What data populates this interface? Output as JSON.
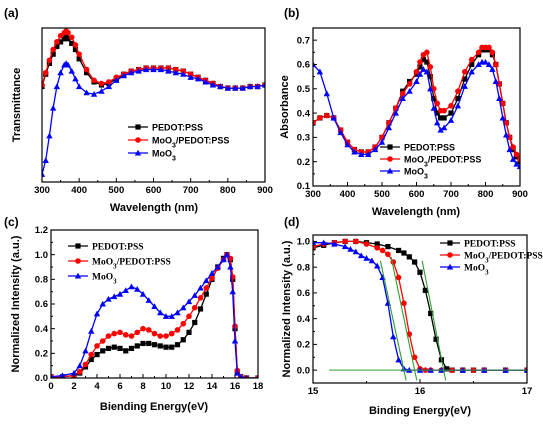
{
  "chart_data": [
    {
      "id": "a",
      "panel_label": "(a)",
      "type": "line",
      "xlabel": "Wavelength (nm)",
      "ylabel": "Transmittance",
      "xlim": [
        300,
        900
      ],
      "ylim": [
        0,
        1
      ],
      "y_ticks_hidden": true,
      "x_ticks": [
        300,
        400,
        500,
        600,
        700,
        800,
        900
      ],
      "x_tick_labels": [
        "300",
        "400",
        "500",
        "600",
        "700",
        "800",
        "900"
      ],
      "legend_position": "lower-right",
      "series": [
        {
          "name": "PEDOT:PSS",
          "color": "#000000",
          "marker": "square",
          "x": [
            300,
            310,
            320,
            330,
            340,
            350,
            360,
            365,
            370,
            380,
            390,
            400,
            420,
            440,
            460,
            480,
            500,
            520,
            540,
            560,
            580,
            600,
            620,
            640,
            660,
            680,
            700,
            720,
            740,
            760,
            780,
            800,
            820,
            840,
            860,
            880,
            900
          ],
          "y": [
            0.62,
            0.7,
            0.77,
            0.83,
            0.88,
            0.91,
            0.93,
            0.94,
            0.93,
            0.9,
            0.86,
            0.8,
            0.71,
            0.65,
            0.63,
            0.64,
            0.67,
            0.7,
            0.72,
            0.73,
            0.74,
            0.74,
            0.74,
            0.74,
            0.73,
            0.72,
            0.7,
            0.68,
            0.66,
            0.64,
            0.62,
            0.61,
            0.61,
            0.61,
            0.62,
            0.62,
            0.63
          ]
        },
        {
          "name": "MoO3/PEDOT:PSS",
          "color": "#ff0000",
          "marker": "circle",
          "x": [
            300,
            310,
            320,
            330,
            340,
            350,
            360,
            365,
            370,
            380,
            390,
            400,
            420,
            440,
            460,
            480,
            500,
            520,
            540,
            560,
            580,
            600,
            620,
            640,
            660,
            680,
            700,
            720,
            740,
            760,
            780,
            800,
            820,
            840,
            860,
            880,
            900
          ],
          "y": [
            0.63,
            0.71,
            0.79,
            0.86,
            0.91,
            0.95,
            0.97,
            0.98,
            0.97,
            0.94,
            0.89,
            0.83,
            0.73,
            0.66,
            0.64,
            0.65,
            0.68,
            0.7,
            0.72,
            0.73,
            0.74,
            0.74,
            0.74,
            0.74,
            0.73,
            0.72,
            0.7,
            0.68,
            0.66,
            0.64,
            0.62,
            0.61,
            0.61,
            0.61,
            0.62,
            0.62,
            0.63
          ]
        },
        {
          "name": "MoO3",
          "color": "#0000ff",
          "marker": "triangle",
          "x": [
            300,
            310,
            320,
            330,
            340,
            350,
            360,
            365,
            370,
            380,
            390,
            400,
            420,
            440,
            460,
            480,
            500,
            520,
            540,
            560,
            580,
            600,
            620,
            640,
            660,
            680,
            700,
            720,
            740,
            760,
            780,
            800,
            820,
            840,
            860,
            880,
            900
          ],
          "y": [
            0.05,
            0.14,
            0.3,
            0.48,
            0.62,
            0.71,
            0.76,
            0.77,
            0.76,
            0.72,
            0.67,
            0.62,
            0.58,
            0.57,
            0.59,
            0.62,
            0.66,
            0.69,
            0.71,
            0.72,
            0.73,
            0.73,
            0.73,
            0.72,
            0.71,
            0.7,
            0.68,
            0.67,
            0.65,
            0.63,
            0.62,
            0.61,
            0.61,
            0.61,
            0.62,
            0.62,
            0.63
          ]
        }
      ]
    },
    {
      "id": "b",
      "panel_label": "(b)",
      "type": "line",
      "xlabel": "Wavelength (nm)",
      "ylabel": "Absorbance",
      "xlim": [
        300,
        900
      ],
      "ylim": [
        0.1,
        0.75
      ],
      "x_ticks": [
        300,
        400,
        500,
        600,
        700,
        800,
        900
      ],
      "x_tick_labels": [
        "300",
        "400",
        "500",
        "600",
        "700",
        "800",
        "900"
      ],
      "y_ticks": [
        0.1,
        0.2,
        0.3,
        0.4,
        0.5,
        0.6,
        0.7
      ],
      "y_tick_labels": [
        "0.1",
        "0.2",
        "0.3",
        "0.4",
        "0.5",
        "0.6",
        "0.7"
      ],
      "legend_position": "lower-right",
      "series": [
        {
          "name": "PEDOT:PSS",
          "color": "#000000",
          "marker": "square",
          "x": [
            300,
            320,
            340,
            360,
            380,
            400,
            420,
            440,
            460,
            480,
            500,
            520,
            540,
            560,
            580,
            600,
            610,
            620,
            630,
            640,
            650,
            660,
            670,
            680,
            700,
            720,
            740,
            760,
            780,
            790,
            800,
            810,
            820,
            830,
            840,
            850,
            860,
            870,
            880,
            890,
            900
          ],
          "y": [
            0.36,
            0.38,
            0.39,
            0.38,
            0.33,
            0.28,
            0.25,
            0.24,
            0.24,
            0.26,
            0.3,
            0.36,
            0.42,
            0.49,
            0.53,
            0.56,
            0.59,
            0.62,
            0.61,
            0.55,
            0.46,
            0.4,
            0.38,
            0.38,
            0.4,
            0.46,
            0.54,
            0.6,
            0.64,
            0.66,
            0.66,
            0.66,
            0.64,
            0.6,
            0.52,
            0.44,
            0.36,
            0.3,
            0.25,
            0.22,
            0.2
          ]
        },
        {
          "name": "MoO3/PEDOT:PSS",
          "color": "#ff0000",
          "marker": "circle",
          "x": [
            300,
            320,
            340,
            360,
            380,
            400,
            420,
            440,
            460,
            480,
            500,
            520,
            540,
            560,
            580,
            600,
            610,
            620,
            630,
            640,
            650,
            660,
            670,
            680,
            700,
            720,
            740,
            760,
            780,
            790,
            800,
            810,
            820,
            830,
            840,
            850,
            860,
            870,
            880,
            890,
            900
          ],
          "y": [
            0.36,
            0.38,
            0.39,
            0.38,
            0.33,
            0.28,
            0.25,
            0.24,
            0.24,
            0.26,
            0.3,
            0.36,
            0.42,
            0.48,
            0.52,
            0.57,
            0.61,
            0.64,
            0.65,
            0.59,
            0.5,
            0.44,
            0.41,
            0.41,
            0.43,
            0.49,
            0.57,
            0.62,
            0.65,
            0.67,
            0.67,
            0.67,
            0.65,
            0.6,
            0.52,
            0.44,
            0.36,
            0.3,
            0.26,
            0.23,
            0.21
          ]
        },
        {
          "name": "MoO3",
          "color": "#0000ff",
          "marker": "triangle",
          "x": [
            300,
            320,
            340,
            360,
            380,
            400,
            420,
            440,
            460,
            480,
            500,
            520,
            540,
            560,
            580,
            600,
            610,
            620,
            630,
            640,
            650,
            660,
            670,
            680,
            700,
            720,
            740,
            760,
            780,
            790,
            800,
            810,
            820,
            830,
            840,
            850,
            860,
            870,
            880,
            890,
            900
          ],
          "y": [
            0.6,
            0.57,
            0.48,
            0.38,
            0.32,
            0.27,
            0.24,
            0.23,
            0.23,
            0.25,
            0.28,
            0.34,
            0.4,
            0.46,
            0.49,
            0.53,
            0.56,
            0.58,
            0.57,
            0.5,
            0.42,
            0.36,
            0.33,
            0.34,
            0.37,
            0.43,
            0.51,
            0.57,
            0.6,
            0.61,
            0.61,
            0.6,
            0.58,
            0.53,
            0.46,
            0.38,
            0.31,
            0.25,
            0.21,
            0.19,
            0.18
          ]
        }
      ]
    },
    {
      "id": "c",
      "panel_label": "(c)",
      "type": "line",
      "xlabel": "Biending Energy(eV)",
      "ylabel": "Normalized Intensity (a.u.)",
      "xlim": [
        0,
        18
      ],
      "ylim": [
        0,
        1.2
      ],
      "x_ticks": [
        0,
        2,
        4,
        6,
        8,
        10,
        12,
        14,
        16,
        18
      ],
      "x_tick_labels": [
        "0",
        "2",
        "4",
        "6",
        "8",
        "10",
        "12",
        "14",
        "16",
        "18"
      ],
      "y_ticks": [
        0,
        0.2,
        0.4,
        0.6,
        0.8,
        1.0,
        1.2
      ],
      "y_tick_labels": [
        "0.0",
        "0.2",
        "0.4",
        "0.6",
        "0.8",
        "1.0",
        "1.2"
      ],
      "legend_position": "top-left",
      "series": [
        {
          "name": "PEDOT:PSS",
          "color": "#000000",
          "marker": "square",
          "x": [
            0,
            1,
            2,
            2.5,
            3,
            3.5,
            4,
            4.5,
            5,
            5.5,
            6,
            6.5,
            7,
            7.5,
            8,
            8.5,
            9,
            9.5,
            10,
            10.5,
            11,
            11.5,
            12,
            12.5,
            13,
            13.5,
            14,
            14.5,
            15,
            15.3,
            15.6,
            15.8,
            16,
            16.2,
            16.5,
            17,
            18
          ],
          "y": [
            0.01,
            0.01,
            0.02,
            0.04,
            0.09,
            0.15,
            0.19,
            0.22,
            0.24,
            0.25,
            0.24,
            0.22,
            0.24,
            0.26,
            0.28,
            0.28,
            0.27,
            0.26,
            0.25,
            0.25,
            0.27,
            0.31,
            0.37,
            0.45,
            0.56,
            0.68,
            0.8,
            0.9,
            0.97,
            1.0,
            0.96,
            0.8,
            0.4,
            0.05,
            0.01,
            0.0,
            0.0
          ]
        },
        {
          "name": "MoO3/PEDOT:PSS",
          "color": "#ff0000",
          "marker": "circle",
          "x": [
            0,
            1,
            2,
            2.5,
            3,
            3.5,
            4,
            4.5,
            5,
            5.5,
            6,
            6.5,
            7,
            7.5,
            8,
            8.5,
            9,
            9.5,
            10,
            10.5,
            11,
            11.5,
            12,
            12.5,
            13,
            13.5,
            14,
            14.5,
            15,
            15.3,
            15.6,
            15.8,
            16,
            16.2,
            16.5,
            17,
            18
          ],
          "y": [
            0.01,
            0.01,
            0.02,
            0.05,
            0.11,
            0.19,
            0.26,
            0.3,
            0.34,
            0.36,
            0.37,
            0.35,
            0.34,
            0.37,
            0.4,
            0.39,
            0.36,
            0.34,
            0.34,
            0.36,
            0.39,
            0.44,
            0.5,
            0.57,
            0.65,
            0.73,
            0.81,
            0.89,
            0.96,
            1.0,
            0.97,
            0.82,
            0.42,
            0.06,
            0.01,
            0.0,
            0.0
          ]
        },
        {
          "name": "MoO3",
          "color": "#0000ff",
          "marker": "triangle",
          "x": [
            0,
            1,
            2,
            2.5,
            3,
            3.5,
            4,
            4.5,
            5,
            5.5,
            6,
            6.5,
            7,
            7.5,
            8,
            8.5,
            9,
            9.5,
            10,
            10.5,
            11,
            11.5,
            12,
            12.5,
            13,
            13.5,
            14,
            14.5,
            15,
            15.3,
            15.6,
            15.8,
            16,
            16.2,
            16.5,
            17,
            18
          ],
          "y": [
            0.01,
            0.02,
            0.04,
            0.1,
            0.22,
            0.38,
            0.52,
            0.6,
            0.64,
            0.66,
            0.68,
            0.71,
            0.74,
            0.72,
            0.68,
            0.63,
            0.58,
            0.53,
            0.5,
            0.5,
            0.53,
            0.57,
            0.62,
            0.67,
            0.73,
            0.79,
            0.85,
            0.9,
            0.96,
            1.0,
            0.9,
            0.7,
            0.3,
            0.04,
            0.01,
            0.0,
            0.0
          ]
        }
      ]
    },
    {
      "id": "d",
      "panel_label": "(d)",
      "type": "line",
      "xlabel": "Binding Energy(eV)",
      "ylabel": "Normalized Intensity (a.u.)",
      "xlim": [
        15,
        17
      ],
      "ylim": [
        -0.1,
        1.05
      ],
      "x_ticks": [
        15,
        16,
        17
      ],
      "x_tick_labels": [
        "15",
        "16",
        "17"
      ],
      "y_ticks": [
        0.0,
        0.2,
        0.4,
        0.6,
        0.8,
        1.0
      ],
      "y_tick_labels": [
        "0.0",
        "0.2",
        "0.4",
        "0.6",
        "0.8",
        "1.0"
      ],
      "legend_position": "top-right",
      "series": [
        {
          "name": "PEDOT:PSS",
          "color": "#000000",
          "marker": "square",
          "x": [
            15.0,
            15.1,
            15.2,
            15.3,
            15.4,
            15.5,
            15.6,
            15.7,
            15.8,
            15.85,
            15.9,
            15.95,
            16.0,
            16.05,
            16.1,
            16.15,
            16.2,
            16.25,
            16.3,
            16.4,
            16.5,
            16.6,
            16.8,
            17.0
          ],
          "y": [
            0.95,
            0.97,
            0.99,
            1.0,
            1.0,
            0.99,
            0.98,
            0.96,
            0.93,
            0.91,
            0.88,
            0.84,
            0.76,
            0.62,
            0.44,
            0.24,
            0.08,
            0.01,
            0.0,
            0.0,
            0.0,
            0.0,
            0.0,
            0.0
          ]
        },
        {
          "name": "MoO3/PEDOT:PSS",
          "color": "#ff0000",
          "marker": "circle",
          "x": [
            15.0,
            15.1,
            15.2,
            15.3,
            15.4,
            15.5,
            15.6,
            15.65,
            15.7,
            15.75,
            15.8,
            15.85,
            15.9,
            15.95,
            16.0,
            16.05,
            16.1,
            16.2,
            16.3,
            16.4,
            16.5,
            16.6,
            16.8,
            17.0
          ],
          "y": [
            0.96,
            0.98,
            0.99,
            1.0,
            1.0,
            0.98,
            0.95,
            0.93,
            0.9,
            0.84,
            0.72,
            0.52,
            0.28,
            0.1,
            0.01,
            0.0,
            0.0,
            0.0,
            0.0,
            0.0,
            0.0,
            0.0,
            0.0,
            0.0
          ]
        },
        {
          "name": "MoO3",
          "color": "#0000ff",
          "marker": "triangle",
          "x": [
            15.0,
            15.1,
            15.2,
            15.3,
            15.35,
            15.4,
            15.45,
            15.5,
            15.55,
            15.6,
            15.65,
            15.7,
            15.75,
            15.8,
            15.85,
            15.9,
            16.0,
            16.1,
            16.2,
            16.4,
            16.6,
            16.8,
            17.0
          ],
          "y": [
            0.99,
            0.99,
            0.98,
            0.96,
            0.94,
            0.92,
            0.89,
            0.87,
            0.85,
            0.81,
            0.72,
            0.52,
            0.26,
            0.08,
            0.01,
            0.0,
            0.0,
            0.0,
            0.0,
            0.0,
            0.0,
            0.0,
            0.0
          ]
        }
      ]
    }
  ]
}
